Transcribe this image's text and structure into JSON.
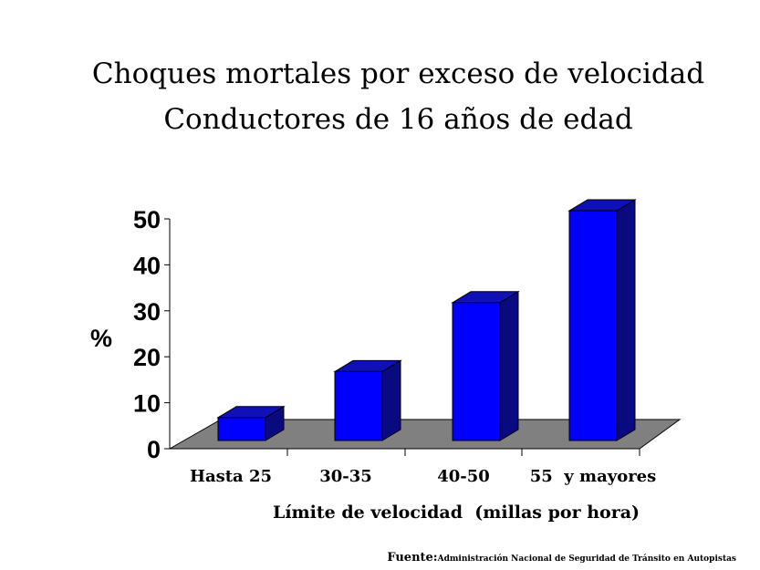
{
  "chart_data": {
    "type": "bar",
    "title": "Choques mortales por exceso de velocidad",
    "subtitle": "Conductores de 16 años de edad",
    "categories": [
      "Hasta 25",
      "30-35",
      "40-50",
      "55  y mayores"
    ],
    "values": [
      5,
      15,
      30,
      50
    ],
    "ylabel": "%",
    "xlabel": "Límite de velocidad  (millas por hora)",
    "yticks": [
      0,
      10,
      20,
      30,
      40,
      50
    ],
    "ylim": [
      0,
      50
    ],
    "grid": false,
    "legend": "none"
  },
  "colors": {
    "bar_front": "#0000ff",
    "bar_top": "#1010b8",
    "bar_side": "#0a0a80",
    "floor": "#808080"
  },
  "source": {
    "label": "Fuente:",
    "text": "Administración Nacional de Seguridad de Tránsito en Autopistas"
  }
}
